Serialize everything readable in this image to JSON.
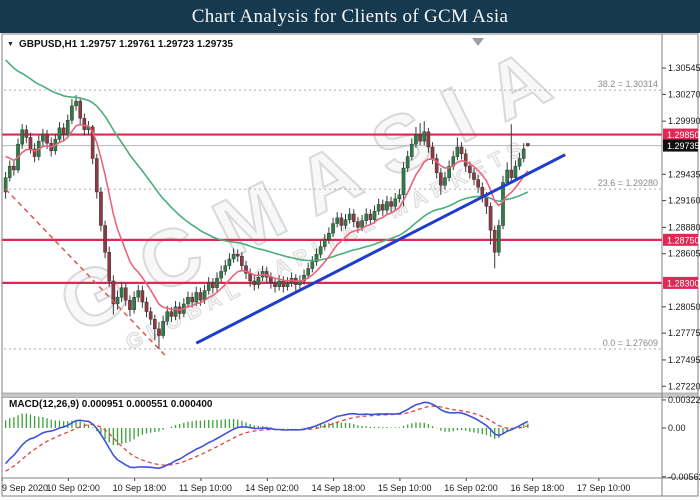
{
  "header": {
    "title": "Chart Analysis for Clients of GCM Asia"
  },
  "symbol_bar": {
    "expander_icon": "▼",
    "text": "GBPUSD,H1  1.29757 1.29761 1.29723 1.29735"
  },
  "indicator_label": {
    "text": "MACD(12,26,9) 0.000951 0.000551 0.000400"
  },
  "watermark": {
    "line1": "GCMASIA",
    "line2": "GLOBAL CAPITAL MARKETS"
  },
  "colors": {
    "titlebar_bg": "#16394f",
    "title_text": "#f4f6f8",
    "bull_candle": "#2e7d46",
    "bear_candle": "#8e3a44",
    "wick": "#3a3a3a",
    "level_red": "#dd2a55",
    "current_price_line": "#b8b8b8",
    "current_badge_bg": "#111111",
    "fib_line": "#aaaaaa",
    "fib_text": "#8a8a8a",
    "ma_slow": "#4cae7d",
    "ma_fast": "#e8647c",
    "trend_blue": "#1f3ccc",
    "trend_red_dashed": "#e05555",
    "macd_main": "#4152d8",
    "macd_signal": "#e04545",
    "macd_hist": "#3aa13a",
    "axis_text": "#1a1a1a",
    "frame": "#808080"
  },
  "chart_data": {
    "type": "candlestick",
    "title": "GBPUSD,H1",
    "symbol": "GBPUSD",
    "timeframe": "H1",
    "ohlc_display": [
      "1.29757",
      "1.29761",
      "1.29723",
      "1.29735"
    ],
    "price_axis": {
      "labels": [
        "1.30545",
        "1.30270",
        "1.29990",
        "1.29435",
        "1.29160",
        "1.28880",
        "1.28605",
        "1.28050",
        "1.27775",
        "1.27495",
        "1.27220"
      ],
      "range": {
        "top": 1.3088,
        "bottom": 1.2716
      }
    },
    "time_axis": {
      "labels": [
        "9 Sep 2020",
        "10 Sep 02:00",
        "10 Sep 18:00",
        "11 Sep 10:00",
        "14 Sep 02:00",
        "14 Sep 18:00",
        "15 Sep 10:00",
        "16 Sep 02:00",
        "16 Sep 18:00",
        "17 Sep 10:00"
      ],
      "step_bars": 16
    },
    "current_price": {
      "value": 1.29735,
      "badge": "1.29735"
    },
    "levels": [
      {
        "price": 1.2985,
        "badge": "1.29850",
        "role": "resistance"
      },
      {
        "price": 1.2875,
        "badge": "1.28750",
        "role": "support"
      },
      {
        "price": 1.283,
        "badge": "1.28300",
        "role": "support"
      }
    ],
    "fib_levels": [
      {
        "label": "38.2 = 1.30314",
        "price": 1.30314
      },
      {
        "label": "23.6 = 1.29280",
        "price": 1.2928
      },
      {
        "label": "0.0 = 1.27609",
        "price": 1.27609
      }
    ],
    "trendlines": [
      {
        "name": "ascending-support",
        "from_bar": 46,
        "from_price": 1.2767,
        "to_bar": 135,
        "to_price": 1.2964,
        "width": 3,
        "dash": "",
        "color_key": "trend_blue"
      },
      {
        "name": "descending-dashed",
        "from_bar": 0,
        "from_price": 1.2928,
        "to_bar": 39,
        "to_price": 1.2752,
        "width": 1.5,
        "dash": "5,4",
        "color_key": "trend_red_dashed"
      }
    ],
    "moving_averages": [
      {
        "name": "slow-ma",
        "period": 50,
        "seed": 1.3068,
        "width": 1.6,
        "color_key": "ma_slow"
      },
      {
        "name": "fast-ma",
        "period": 10,
        "seed": 1.2967,
        "width": 1.6,
        "color_key": "ma_fast"
      }
    ],
    "macd": {
      "params": "12,26,9",
      "fast": 12,
      "slow": 26,
      "signal_period": 9,
      "display_values": [
        "0.000951",
        "0.000551",
        "0.000400"
      ],
      "axis_labels": [
        {
          "text": "0.003224",
          "value": 0.003224
        },
        {
          "text": "0.00",
          "value": 0.0
        },
        {
          "text": "-0.005621",
          "value": -0.005621
        }
      ],
      "range": {
        "top": 0.00345,
        "bottom": -0.00553
      },
      "seed_fast_offset": -0.002,
      "seed_slow_offset": 0.0026,
      "seed_signal": -0.0052
    },
    "candles": [
      [
        1.2925,
        1.2946,
        1.2918,
        1.294
      ],
      [
        1.294,
        1.2958,
        1.2936,
        1.2952
      ],
      [
        1.2952,
        1.2958,
        1.2942,
        1.2948
      ],
      [
        1.2948,
        1.2981,
        1.2945,
        1.2975
      ],
      [
        1.2975,
        1.2996,
        1.297,
        1.299
      ],
      [
        1.299,
        1.2995,
        1.2976,
        1.2982
      ],
      [
        1.2982,
        1.2987,
        1.2965,
        1.297
      ],
      [
        1.297,
        1.2976,
        1.2956,
        1.2962
      ],
      [
        1.2962,
        1.2984,
        1.2958,
        1.2978
      ],
      [
        1.2978,
        1.2991,
        1.2973,
        1.2985
      ],
      [
        1.2985,
        1.299,
        1.297,
        1.2976
      ],
      [
        1.2976,
        1.2982,
        1.2962,
        1.2968
      ],
      [
        1.2968,
        1.2986,
        1.2964,
        1.298
      ],
      [
        1.298,
        1.2998,
        1.2976,
        1.2992
      ],
      [
        1.2992,
        1.2997,
        1.2979,
        1.2985
      ],
      [
        1.2985,
        1.3006,
        1.2981,
        1.3
      ],
      [
        1.3,
        1.3022,
        1.2996,
        1.3015
      ],
      [
        1.3015,
        1.30261,
        1.301,
        1.302
      ],
      [
        1.302,
        1.3024,
        1.2996,
        1.3002
      ],
      [
        1.3002,
        1.3007,
        1.2984,
        1.299
      ],
      [
        1.299,
        1.2999,
        1.2985,
        1.2993
      ],
      [
        1.2993,
        1.2995,
        1.2954,
        1.296
      ],
      [
        1.296,
        1.2965,
        1.2918,
        1.2925
      ],
      [
        1.2925,
        1.293,
        1.2884,
        1.289
      ],
      [
        1.289,
        1.2895,
        1.2856,
        1.2862
      ],
      [
        1.2862,
        1.2868,
        1.2826,
        1.2832
      ],
      [
        1.2832,
        1.2838,
        1.27968,
        1.2808
      ],
      [
        1.2808,
        1.2822,
        1.2802,
        1.2815
      ],
      [
        1.2815,
        1.2831,
        1.281,
        1.2825
      ],
      [
        1.2825,
        1.283,
        1.2806,
        1.2812
      ],
      [
        1.2812,
        1.2817,
        1.2795,
        1.2802
      ],
      [
        1.2802,
        1.2821,
        1.2798,
        1.2815
      ],
      [
        1.2815,
        1.2828,
        1.281,
        1.2822
      ],
      [
        1.2822,
        1.2827,
        1.2804,
        1.281
      ],
      [
        1.281,
        1.2815,
        1.2794,
        1.28
      ],
      [
        1.28,
        1.2805,
        1.2786,
        1.2792
      ],
      [
        1.2792,
        1.2797,
        1.277,
        1.2782
      ],
      [
        1.2782,
        1.2789,
        1.27609,
        1.2775
      ],
      [
        1.2775,
        1.2796,
        1.2772,
        1.279
      ],
      [
        1.279,
        1.2806,
        1.2786,
        1.28
      ],
      [
        1.28,
        1.2805,
        1.2789,
        1.2795
      ],
      [
        1.2795,
        1.2811,
        1.2791,
        1.2805
      ],
      [
        1.2805,
        1.281,
        1.2792,
        1.2798
      ],
      [
        1.2798,
        1.2814,
        1.2794,
        1.2808
      ],
      [
        1.2808,
        1.2821,
        1.2804,
        1.2815
      ],
      [
        1.2815,
        1.282,
        1.2804,
        1.281
      ],
      [
        1.281,
        1.2826,
        1.2806,
        1.282
      ],
      [
        1.282,
        1.2825,
        1.2806,
        1.2812
      ],
      [
        1.2812,
        1.2828,
        1.2808,
        1.2822
      ],
      [
        1.2822,
        1.2836,
        1.2818,
        1.283
      ],
      [
        1.283,
        1.2835,
        1.2819,
        1.2825
      ],
      [
        1.2825,
        1.2841,
        1.2821,
        1.2835
      ],
      [
        1.2835,
        1.2848,
        1.2831,
        1.2842
      ],
      [
        1.2842,
        1.2854,
        1.2838,
        1.2848
      ],
      [
        1.2848,
        1.2861,
        1.2844,
        1.2855
      ],
      [
        1.2855,
        1.2866,
        1.2851,
        1.286
      ],
      [
        1.286,
        1.2865,
        1.2852,
        1.2858
      ],
      [
        1.2858,
        1.2862,
        1.2842,
        1.2848
      ],
      [
        1.2848,
        1.2853,
        1.2834,
        1.284
      ],
      [
        1.284,
        1.2845,
        1.2826,
        1.2832
      ],
      [
        1.2832,
        1.2838,
        1.2822,
        1.2828
      ],
      [
        1.2828,
        1.2842,
        1.2824,
        1.2836
      ],
      [
        1.2836,
        1.2848,
        1.2832,
        1.2842
      ],
      [
        1.2842,
        1.2847,
        1.283,
        1.2836
      ],
      [
        1.2836,
        1.2841,
        1.2824,
        1.283
      ],
      [
        1.283,
        1.2835,
        1.282,
        1.2826
      ],
      [
        1.2826,
        1.2838,
        1.2822,
        1.2832
      ],
      [
        1.2832,
        1.2837,
        1.282,
        1.2826
      ],
      [
        1.2826,
        1.2836,
        1.2822,
        1.283
      ],
      [
        1.283,
        1.2841,
        1.2826,
        1.2835
      ],
      [
        1.2835,
        1.2839,
        1.2822,
        1.2828
      ],
      [
        1.2828,
        1.2838,
        1.2824,
        1.2832
      ],
      [
        1.2832,
        1.2844,
        1.2828,
        1.2838
      ],
      [
        1.2838,
        1.2851,
        1.2834,
        1.2845
      ],
      [
        1.2845,
        1.2858,
        1.2841,
        1.2852
      ],
      [
        1.2852,
        1.2866,
        1.2848,
        1.286
      ],
      [
        1.286,
        1.2874,
        1.2856,
        1.2868
      ],
      [
        1.2868,
        1.2881,
        1.2864,
        1.2875
      ],
      [
        1.2875,
        1.2888,
        1.2871,
        1.2882
      ],
      [
        1.2882,
        1.2898,
        1.2878,
        1.2892
      ],
      [
        1.2892,
        1.2904,
        1.2888,
        1.2898
      ],
      [
        1.2898,
        1.2903,
        1.2884,
        1.289
      ],
      [
        1.289,
        1.2902,
        1.2886,
        1.2896
      ],
      [
        1.2896,
        1.2908,
        1.2892,
        1.2902
      ],
      [
        1.2902,
        1.2907,
        1.2888,
        1.2894
      ],
      [
        1.2894,
        1.2899,
        1.2882,
        1.2888
      ],
      [
        1.2888,
        1.2901,
        1.2884,
        1.2895
      ],
      [
        1.2895,
        1.2908,
        1.2891,
        1.2902
      ],
      [
        1.2902,
        1.2907,
        1.289,
        1.2896
      ],
      [
        1.2896,
        1.2911,
        1.2892,
        1.2905
      ],
      [
        1.2905,
        1.2918,
        1.2901,
        1.2912
      ],
      [
        1.2912,
        1.2917,
        1.29,
        1.2906
      ],
      [
        1.2906,
        1.2921,
        1.2902,
        1.2915
      ],
      [
        1.2915,
        1.292,
        1.2904,
        1.291
      ],
      [
        1.291,
        1.2924,
        1.2906,
        1.2918
      ],
      [
        1.2918,
        1.2928,
        1.2914,
        1.2922
      ],
      [
        1.2922,
        1.2956,
        1.291,
        1.295
      ],
      [
        1.295,
        1.2968,
        1.2946,
        1.2962
      ],
      [
        1.2962,
        1.2981,
        1.2958,
        1.2975
      ],
      [
        1.2975,
        1.2993,
        1.2971,
        1.2985
      ],
      [
        1.2985,
        1.2997,
        1.2974,
        1.2978
      ],
      [
        1.2978,
        1.2999,
        1.2974,
        1.2988
      ],
      [
        1.2988,
        1.2992,
        1.2966,
        1.2972
      ],
      [
        1.2972,
        1.2977,
        1.2954,
        1.296
      ],
      [
        1.296,
        1.2965,
        1.2939,
        1.2945
      ],
      [
        1.2945,
        1.295,
        1.2922,
        1.2932
      ],
      [
        1.2932,
        1.2946,
        1.2928,
        1.294
      ],
      [
        1.294,
        1.2958,
        1.2936,
        1.2952
      ],
      [
        1.2952,
        1.2968,
        1.2948,
        1.2962
      ],
      [
        1.2962,
        1.2982,
        1.2958,
        1.2972
      ],
      [
        1.2972,
        1.2977,
        1.2959,
        1.2965
      ],
      [
        1.2965,
        1.297,
        1.2946,
        1.2952
      ],
      [
        1.2952,
        1.2957,
        1.2939,
        1.2945
      ],
      [
        1.2945,
        1.295,
        1.2932,
        1.2938
      ],
      [
        1.2938,
        1.2943,
        1.2924,
        1.293
      ],
      [
        1.293,
        1.2935,
        1.2914,
        1.292
      ],
      [
        1.292,
        1.2925,
        1.2902,
        1.291
      ],
      [
        1.291,
        1.2914,
        1.287,
        1.2885
      ],
      [
        1.2885,
        1.289,
        1.28452,
        1.2862
      ],
      [
        1.2862,
        1.2896,
        1.2858,
        1.289
      ],
      [
        1.289,
        1.2942,
        1.2886,
        1.2935
      ],
      [
        1.2935,
        1.2956,
        1.2931,
        1.2948
      ],
      [
        1.2948,
        1.29958,
        1.2936,
        1.294
      ],
      [
        1.294,
        1.2958,
        1.2936,
        1.2952
      ],
      [
        1.2952,
        1.2966,
        1.2948,
        1.296
      ],
      [
        1.296,
        1.2976,
        1.2956,
        1.297
      ],
      [
        1.29757,
        1.29761,
        1.29723,
        1.29735
      ]
    ]
  }
}
